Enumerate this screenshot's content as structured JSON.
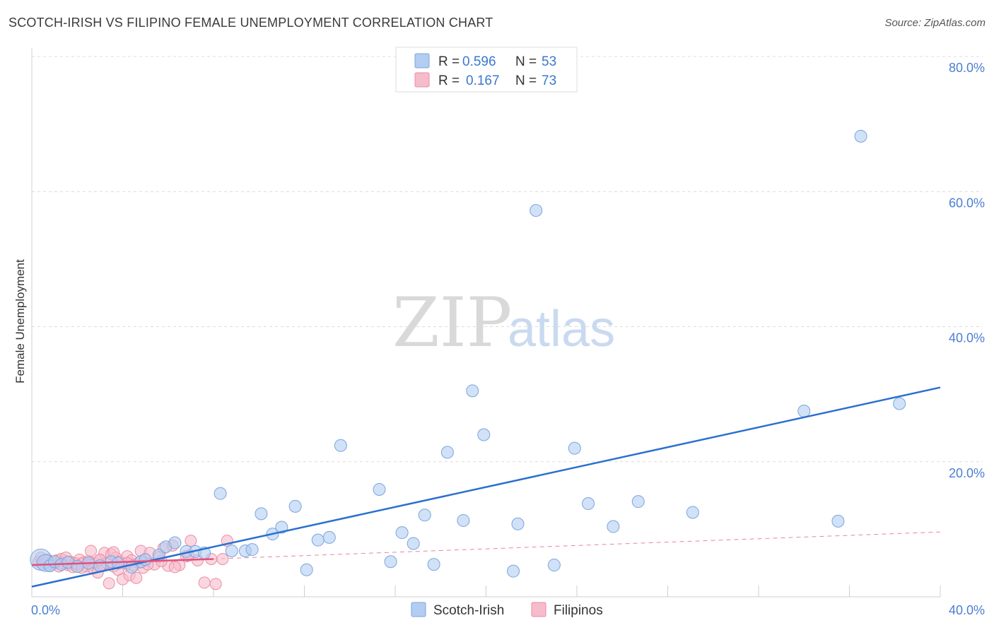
{
  "title": "SCOTCH-IRISH VS FILIPINO FEMALE UNEMPLOYMENT CORRELATION CHART",
  "source": "Source: ZipAtlas.com",
  "watermark": {
    "zip": "ZIP",
    "atlas": "atlas"
  },
  "colors": {
    "blue_fill": "#b3cdf2",
    "blue_stroke": "#7aa5de",
    "blue_line": "#2a6fd0",
    "pink_fill": "#f6bccb",
    "pink_stroke": "#ea8ca6",
    "pink_line": "#e0507e",
    "grid": "#dcdcdc",
    "tick_text": "#4a7fd0"
  },
  "legend": {
    "rows": [
      {
        "r_label": "R =",
        "r_value": "0.596",
        "n_label": "N =",
        "n_value": "53",
        "color": "#b3cdf2"
      },
      {
        "r_label": "R =",
        "r_value": "0.167",
        "n_label": "N =",
        "n_value": "73",
        "color": "#f6bccb"
      }
    ]
  },
  "chart_data": {
    "type": "scatter",
    "title": "SCOTCH-IRISH VS FILIPINO FEMALE UNEMPLOYMENT CORRELATION CHART",
    "xlabel": "",
    "ylabel": "Female Unemployment",
    "xlim": [
      0,
      40
    ],
    "ylim": [
      0,
      80
    ],
    "x_tick_labels": [
      "0.0%",
      "40.0%"
    ],
    "y_ticks": [
      20,
      40,
      60,
      80
    ],
    "y_tick_labels": [
      "20.0%",
      "40.0%",
      "60.0%",
      "80.0%"
    ],
    "series": [
      {
        "name": "Scotch-Irish",
        "r": 0.596,
        "n": 53,
        "trend": {
          "x": [
            0,
            40
          ],
          "y": [
            1.5,
            31.0
          ]
        },
        "points": [
          [
            0.4,
            5.5
          ],
          [
            0.6,
            5.0
          ],
          [
            0.8,
            4.6
          ],
          [
            1.0,
            5.2
          ],
          [
            1.3,
            4.8
          ],
          [
            1.6,
            5.1
          ],
          [
            2.0,
            4.5
          ],
          [
            2.5,
            5.0
          ],
          [
            3.0,
            4.6
          ],
          [
            3.5,
            5.2
          ],
          [
            3.8,
            5.0
          ],
          [
            4.4,
            4.4
          ],
          [
            4.8,
            5.2
          ],
          [
            5.0,
            5.5
          ],
          [
            5.6,
            6.2
          ],
          [
            5.9,
            7.4
          ],
          [
            6.3,
            8.0
          ],
          [
            6.8,
            6.7
          ],
          [
            7.2,
            6.7
          ],
          [
            7.6,
            6.5
          ],
          [
            8.3,
            15.3
          ],
          [
            8.8,
            6.8
          ],
          [
            9.4,
            6.8
          ],
          [
            9.7,
            7.0
          ],
          [
            10.1,
            12.3
          ],
          [
            10.6,
            9.3
          ],
          [
            11.0,
            10.3
          ],
          [
            11.6,
            13.4
          ],
          [
            12.1,
            4.0
          ],
          [
            12.6,
            8.4
          ],
          [
            13.1,
            8.8
          ],
          [
            13.6,
            22.4
          ],
          [
            15.3,
            15.9
          ],
          [
            15.8,
            5.2
          ],
          [
            16.3,
            9.5
          ],
          [
            16.8,
            7.9
          ],
          [
            17.3,
            12.1
          ],
          [
            17.7,
            4.8
          ],
          [
            18.3,
            21.4
          ],
          [
            19.0,
            11.3
          ],
          [
            19.4,
            30.5
          ],
          [
            19.9,
            24.0
          ],
          [
            21.2,
            3.8
          ],
          [
            21.4,
            10.8
          ],
          [
            22.2,
            57.2
          ],
          [
            23.0,
            4.7
          ],
          [
            23.9,
            22.0
          ],
          [
            24.5,
            13.8
          ],
          [
            25.6,
            10.4
          ],
          [
            26.7,
            14.1
          ],
          [
            29.1,
            12.5
          ],
          [
            34.0,
            27.5
          ],
          [
            35.5,
            11.2
          ],
          [
            36.5,
            68.2
          ],
          [
            38.2,
            28.6
          ]
        ]
      },
      {
        "name": "Filipinos",
        "r": 0.167,
        "n": 73,
        "trend": {
          "x": [
            0,
            8
          ],
          "y": [
            4.7,
            5.6
          ]
        },
        "trend_extension": {
          "x": [
            8,
            40
          ],
          "y": [
            5.6,
            9.6
          ]
        },
        "points": [
          [
            0.3,
            5.2
          ],
          [
            0.4,
            5.8
          ],
          [
            0.5,
            4.8
          ],
          [
            0.6,
            5.0
          ],
          [
            0.7,
            5.5
          ],
          [
            0.8,
            4.6
          ],
          [
            0.9,
            5.2
          ],
          [
            1.0,
            4.9
          ],
          [
            1.1,
            5.4
          ],
          [
            1.2,
            4.5
          ],
          [
            1.3,
            5.6
          ],
          [
            1.4,
            4.9
          ],
          [
            1.5,
            5.3
          ],
          [
            1.6,
            4.7
          ],
          [
            1.7,
            5.2
          ],
          [
            1.8,
            4.4
          ],
          [
            1.9,
            5.0
          ],
          [
            2.0,
            4.8
          ],
          [
            2.1,
            5.5
          ],
          [
            2.2,
            4.9
          ],
          [
            2.3,
            5.1
          ],
          [
            2.4,
            4.5
          ],
          [
            2.5,
            5.3
          ],
          [
            2.6,
            4.8
          ],
          [
            2.7,
            4.2
          ],
          [
            2.8,
            5.0
          ],
          [
            2.9,
            3.6
          ],
          [
            3.0,
            5.4
          ],
          [
            3.1,
            4.7
          ],
          [
            3.2,
            6.5
          ],
          [
            3.3,
            5.0
          ],
          [
            3.4,
            2.0
          ],
          [
            3.5,
            6.3
          ],
          [
            3.6,
            4.5
          ],
          [
            3.7,
            5.8
          ],
          [
            3.8,
            4.0
          ],
          [
            3.9,
            5.2
          ],
          [
            4.0,
            2.6
          ],
          [
            4.1,
            4.9
          ],
          [
            4.2,
            6.0
          ],
          [
            4.3,
            3.2
          ],
          [
            4.4,
            5.4
          ],
          [
            4.5,
            4.7
          ],
          [
            4.6,
            2.8
          ],
          [
            4.7,
            5.0
          ],
          [
            4.8,
            6.8
          ],
          [
            4.9,
            4.3
          ],
          [
            5.0,
            5.6
          ],
          [
            5.2,
            6.5
          ],
          [
            5.4,
            4.8
          ],
          [
            5.6,
            5.9
          ],
          [
            5.8,
            7.2
          ],
          [
            6.0,
            4.6
          ],
          [
            6.2,
            7.6
          ],
          [
            6.5,
            4.7
          ],
          [
            6.8,
            6.0
          ],
          [
            7.0,
            8.3
          ],
          [
            7.3,
            5.4
          ],
          [
            7.6,
            2.1
          ],
          [
            7.9,
            5.6
          ],
          [
            8.1,
            1.9
          ],
          [
            8.4,
            5.6
          ],
          [
            8.6,
            8.3
          ],
          [
            1.5,
            5.8
          ],
          [
            2.2,
            4.3
          ],
          [
            3.0,
            5.5
          ],
          [
            3.6,
            6.6
          ],
          [
            4.2,
            5.0
          ],
          [
            5.1,
            4.8
          ],
          [
            5.7,
            5.3
          ],
          [
            6.3,
            4.4
          ],
          [
            6.9,
            6.1
          ],
          [
            2.6,
            6.8
          ]
        ]
      }
    ],
    "legend_position": "top-center",
    "bottom_legend": [
      "Scotch-Irish",
      "Filipinos"
    ]
  }
}
